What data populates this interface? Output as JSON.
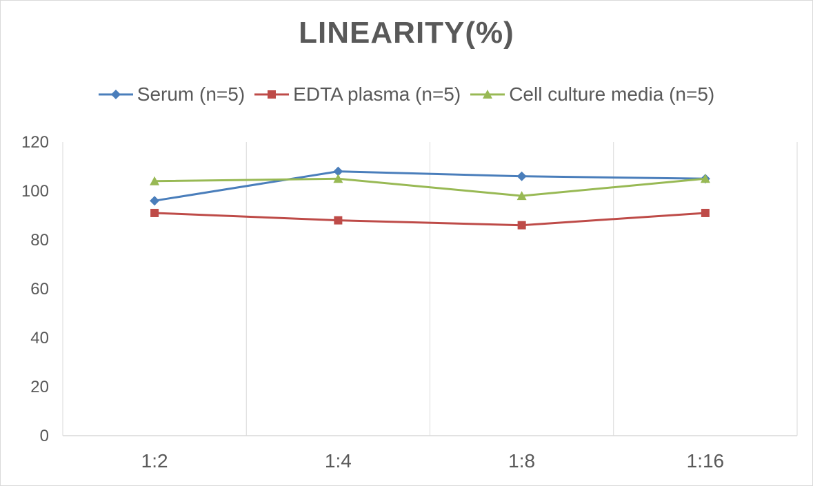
{
  "chart_data": {
    "type": "line",
    "title": "LINEARITY(%)",
    "xlabel": "",
    "ylabel": "",
    "categories": [
      "1:2",
      "1:4",
      "1:8",
      "1:16"
    ],
    "ylim": [
      0,
      120
    ],
    "yticks": [
      0,
      20,
      40,
      60,
      80,
      100,
      120
    ],
    "grid": "vertical",
    "legend_position": "top",
    "series": [
      {
        "name": "Serum (n=5)",
        "values": [
          96,
          108,
          106,
          105
        ],
        "color": "#4a7ebb",
        "marker": "diamond"
      },
      {
        "name": "EDTA plasma (n=5)",
        "values": [
          91,
          88,
          86,
          91
        ],
        "color": "#be4b48",
        "marker": "square"
      },
      {
        "name": "Cell culture media (n=5)",
        "values": [
          104,
          105,
          98,
          105
        ],
        "color": "#98b954",
        "marker": "triangle"
      }
    ]
  }
}
